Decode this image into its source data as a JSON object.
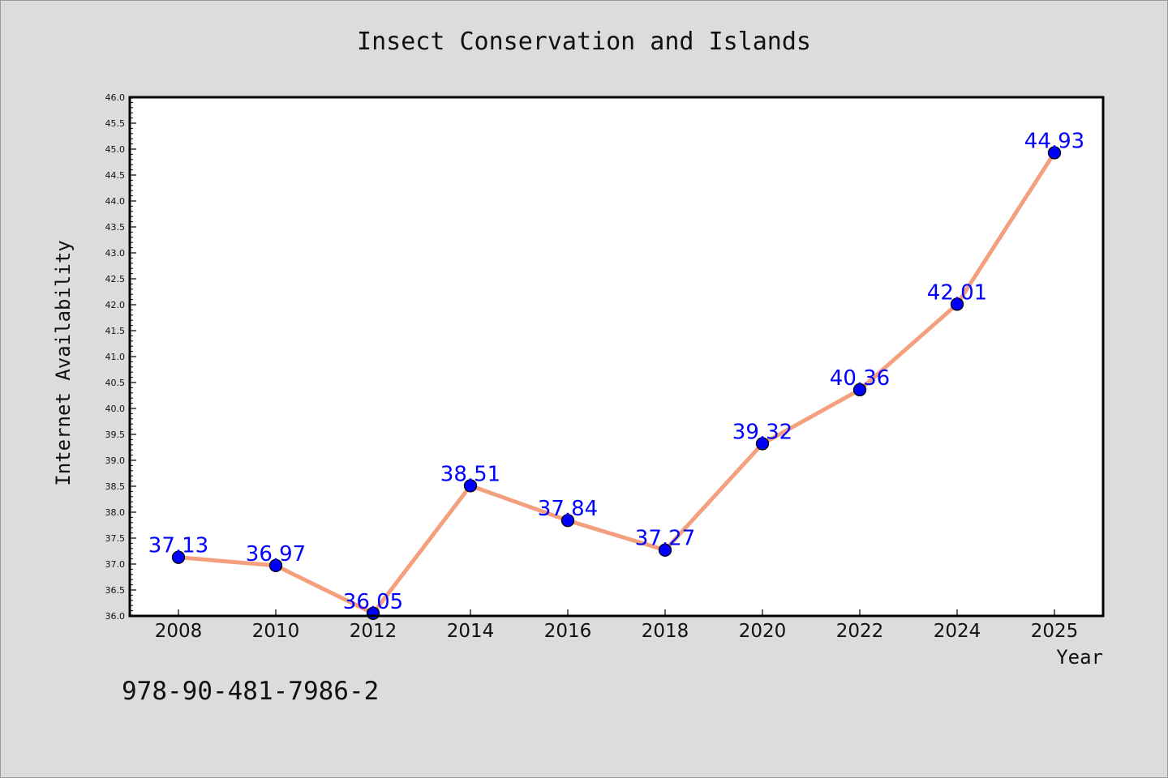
{
  "chart_data": {
    "type": "line",
    "title": "Insect Conservation and Islands",
    "xlabel": "Year",
    "ylabel": "Internet Availability",
    "categories": [
      "2008",
      "2010",
      "2012",
      "2014",
      "2016",
      "2018",
      "2020",
      "2022",
      "2024",
      "2025"
    ],
    "series": [
      {
        "values": [
          37.13,
          36.97,
          36.05,
          38.51,
          37.84,
          37.27,
          39.32,
          40.36,
          42.01,
          44.93
        ],
        "labels": [
          "37.13",
          "36.97",
          "36.05",
          "38.51",
          "37.84",
          "37.27",
          "39.32",
          "40.36",
          "42.01",
          "44.93"
        ],
        "line_color": "#f4a07e",
        "marker_color": "#0000ff"
      }
    ],
    "ylim": [
      36.0,
      46.0
    ],
    "y_ticks": [
      "36.0",
      "36.5",
      "37.0",
      "37.5",
      "38.0",
      "38.5",
      "39.0",
      "39.5",
      "40.0",
      "40.5",
      "41.0",
      "41.5",
      "42.0",
      "42.5",
      "43.0",
      "43.5",
      "44.0",
      "44.5",
      "45.0",
      "45.5",
      "46.0"
    ],
    "grid": false,
    "legend": "none"
  },
  "footer": {
    "isbn": "978-90-481-7986-2"
  },
  "colors": {
    "background": "#dcdcdc",
    "plot_background": "#ffffff"
  }
}
